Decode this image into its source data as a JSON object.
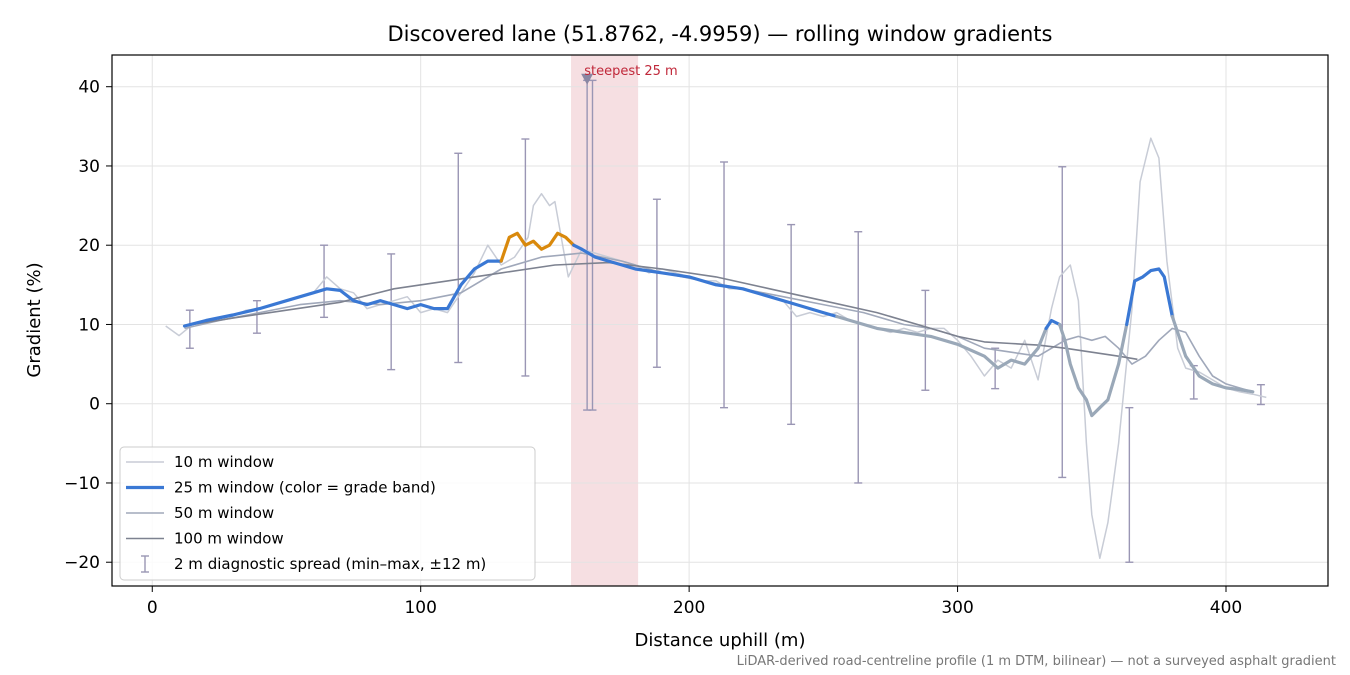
{
  "chart_data": {
    "type": "line",
    "title": "Discovered lane (51.8762, -4.9959) — rolling window gradients",
    "xlabel": "Distance uphill (m)",
    "ylabel": "Gradient (%)",
    "xlim": [
      -15,
      438
    ],
    "ylim": [
      -23,
      44
    ],
    "xticks": [
      0,
      100,
      200,
      300,
      400
    ],
    "yticks": [
      -20,
      -10,
      0,
      10,
      20,
      30,
      40
    ],
    "grid": true,
    "legend_position": "lower-left",
    "footnote": "LiDAR-derived road-centreline profile (1 m DTM, bilinear) — not a surveyed asphalt gradient",
    "highlight": {
      "label": "steepest 25 m",
      "x_start": 156,
      "x_end": 181,
      "marker": [
        162,
        41
      ]
    },
    "colors": {
      "w10": "#c8ccd6",
      "w25": "#3a78d4",
      "w25_steep": "#d9890c",
      "w25_gentle": "#9aa8b8",
      "w50": "#a0a8ba",
      "w100": "#7d8290",
      "err": "#9a96b4",
      "band": "#f4d9dd"
    },
    "legend": [
      {
        "label": "10 m window",
        "key": "w10"
      },
      {
        "label": "25 m window (color = grade band)",
        "key": "w25"
      },
      {
        "label": "50 m window",
        "key": "w50"
      },
      {
        "label": "100 m window",
        "key": "w100"
      },
      {
        "label": "2 m diagnostic spread (min–max, ±12 m)",
        "key": "err"
      }
    ],
    "series": [
      {
        "name": "10 m window",
        "key": "w10",
        "x": [
          5,
          10,
          15,
          20,
          25,
          30,
          35,
          40,
          45,
          50,
          55,
          60,
          65,
          70,
          75,
          80,
          85,
          90,
          95,
          100,
          105,
          110,
          115,
          120,
          125,
          130,
          135,
          140,
          142,
          145,
          148,
          150,
          155,
          160,
          165,
          170,
          175,
          180,
          185,
          190,
          195,
          200,
          205,
          210,
          215,
          220,
          225,
          230,
          235,
          240,
          245,
          250,
          255,
          260,
          265,
          270,
          275,
          280,
          285,
          290,
          295,
          300,
          305,
          310,
          315,
          320,
          325,
          330,
          335,
          338,
          342,
          345,
          348,
          350,
          353,
          356,
          360,
          365,
          368,
          372,
          375,
          378,
          382,
          385,
          390,
          395,
          400,
          405,
          410,
          415
        ],
        "y": [
          9.8,
          8.6,
          10.0,
          10.2,
          10.8,
          11.0,
          11.8,
          12.0,
          12.5,
          13.0,
          13.5,
          14.0,
          16.0,
          14.5,
          14.0,
          12.0,
          12.5,
          13.0,
          13.5,
          11.5,
          12.0,
          11.5,
          14.0,
          16.5,
          20.0,
          17.5,
          18.5,
          21.0,
          25.0,
          26.5,
          25.0,
          25.5,
          16.0,
          19.5,
          19.0,
          18.5,
          18.0,
          17.5,
          16.5,
          17.0,
          16.5,
          16.0,
          15.5,
          15.5,
          14.5,
          14.5,
          14.0,
          13.5,
          13.0,
          11.0,
          11.5,
          11.0,
          11.5,
          10.5,
          10.0,
          9.5,
          9.0,
          9.5,
          9.0,
          9.5,
          9.5,
          8.0,
          6.0,
          3.5,
          5.5,
          4.5,
          8.0,
          3.0,
          12.0,
          16.0,
          17.5,
          13.0,
          -5.0,
          -14.0,
          -19.5,
          -15.0,
          -5.0,
          12.0,
          28.0,
          33.5,
          31.0,
          18.0,
          7.0,
          4.5,
          4.0,
          3.0,
          2.0,
          1.5,
          1.2,
          0.8
        ]
      },
      {
        "name": "25 m window",
        "key": "w25",
        "x": [
          12,
          20,
          30,
          40,
          50,
          60,
          65,
          70,
          75,
          80,
          85,
          90,
          95,
          100,
          105,
          110,
          115,
          120,
          125,
          130,
          133,
          136,
          139,
          142,
          145,
          148,
          151,
          154,
          157,
          160,
          165,
          170,
          175,
          180,
          190,
          200,
          210,
          220,
          230,
          240,
          250,
          255,
          260,
          270,
          280,
          290,
          300,
          310,
          315,
          320,
          325,
          330,
          333,
          335,
          338,
          340,
          342,
          345,
          348,
          350,
          353,
          356,
          360,
          363,
          366,
          369,
          372,
          375,
          377,
          380,
          385,
          390,
          395,
          400,
          405,
          410
        ],
        "y": [
          9.8,
          10.5,
          11.2,
          12.0,
          13.0,
          14.0,
          14.5,
          14.3,
          13.0,
          12.5,
          13.0,
          12.5,
          12.0,
          12.5,
          12.0,
          12.0,
          15.0,
          17.0,
          18.0,
          18.0,
          21.0,
          21.5,
          20.0,
          20.5,
          19.5,
          20.0,
          21.5,
          21.0,
          20.0,
          19.5,
          18.5,
          18.0,
          17.5,
          17.0,
          16.5,
          16.0,
          15.0,
          14.5,
          13.5,
          12.5,
          11.5,
          11.0,
          10.5,
          9.5,
          9.0,
          8.5,
          7.5,
          6.0,
          4.5,
          5.5,
          5.0,
          7.0,
          9.5,
          10.5,
          10.0,
          8.0,
          5.0,
          2.0,
          0.5,
          -1.5,
          -0.5,
          0.5,
          5.0,
          10.0,
          15.5,
          16.0,
          16.8,
          17.0,
          16.0,
          11.0,
          6.0,
          3.5,
          2.5,
          2.0,
          1.8,
          1.5
        ],
        "segments": [
          {
            "band": "moderate",
            "x_from": 12,
            "x_to": 130
          },
          {
            "band": "steep",
            "x_from": 130,
            "x_to": 157
          },
          {
            "band": "moderate",
            "x_from": 157,
            "x_to": 255
          },
          {
            "band": "gentle",
            "x_from": 255,
            "x_to": 333
          },
          {
            "band": "moderate",
            "x_from": 333,
            "x_to": 338
          },
          {
            "band": "gentle",
            "x_from": 338,
            "x_to": 363
          },
          {
            "band": "moderate",
            "x_from": 363,
            "x_to": 380
          },
          {
            "band": "gentle",
            "x_from": 380,
            "x_to": 410
          }
        ]
      },
      {
        "name": "50 m window",
        "key": "w50",
        "x": [
          12,
          25,
          40,
          55,
          70,
          85,
          100,
          115,
          130,
          145,
          160,
          175,
          190,
          205,
          220,
          235,
          250,
          265,
          280,
          290,
          300,
          310,
          320,
          330,
          340,
          345,
          350,
          355,
          360,
          365,
          370,
          375,
          380,
          385,
          390,
          395,
          400,
          405,
          410
        ],
        "y": [
          9.5,
          10.5,
          11.5,
          12.5,
          13.0,
          12.5,
          13.0,
          14.0,
          17.0,
          18.5,
          19.0,
          18.0,
          16.5,
          15.5,
          14.5,
          13.5,
          12.5,
          11.5,
          10.0,
          9.5,
          8.5,
          7.0,
          6.5,
          6.0,
          8.0,
          8.5,
          8.0,
          8.5,
          7.0,
          5.0,
          6.0,
          8.0,
          9.5,
          9.0,
          6.0,
          3.5,
          2.5,
          2.0,
          1.5
        ]
      },
      {
        "name": "100 m window",
        "key": "w100",
        "x": [
          15,
          30,
          50,
          70,
          90,
          110,
          130,
          150,
          170,
          190,
          210,
          230,
          250,
          270,
          290,
          300,
          310,
          320,
          330,
          340,
          350,
          360,
          367
        ],
        "y": [
          10.0,
          10.8,
          11.8,
          12.8,
          14.5,
          15.5,
          16.5,
          17.5,
          17.8,
          17.0,
          16.0,
          14.5,
          13.0,
          11.5,
          9.5,
          8.5,
          7.8,
          7.6,
          7.4,
          7.0,
          6.5,
          6.0,
          5.6
        ]
      }
    ],
    "error_bars": [
      {
        "x": 14,
        "min": 7.0,
        "max": 11.8
      },
      {
        "x": 39,
        "min": 8.9,
        "max": 13.0
      },
      {
        "x": 64,
        "min": 10.9,
        "max": 20.0
      },
      {
        "x": 89,
        "min": 4.3,
        "max": 18.9
      },
      {
        "x": 114,
        "min": 5.2,
        "max": 31.6
      },
      {
        "x": 139,
        "min": 3.5,
        "max": 33.4
      },
      {
        "x": 162,
        "min": -0.8,
        "max": 40.8
      },
      {
        "x": 164,
        "min": -0.8,
        "max": 40.8
      },
      {
        "x": 188,
        "min": 4.6,
        "max": 25.8
      },
      {
        "x": 213,
        "min": -0.5,
        "max": 30.5
      },
      {
        "x": 238,
        "min": -2.6,
        "max": 22.6
      },
      {
        "x": 263,
        "min": -10.0,
        "max": 21.7
      },
      {
        "x": 288,
        "min": 1.7,
        "max": 14.3
      },
      {
        "x": 314,
        "min": 1.9,
        "max": 7.0
      },
      {
        "x": 339,
        "min": -9.3,
        "max": 29.9
      },
      {
        "x": 364,
        "min": -20.0,
        "max": -0.5
      },
      {
        "x": 388,
        "min": 0.6,
        "max": 4.8
      },
      {
        "x": 413,
        "min": -0.1,
        "max": 2.4
      }
    ]
  }
}
